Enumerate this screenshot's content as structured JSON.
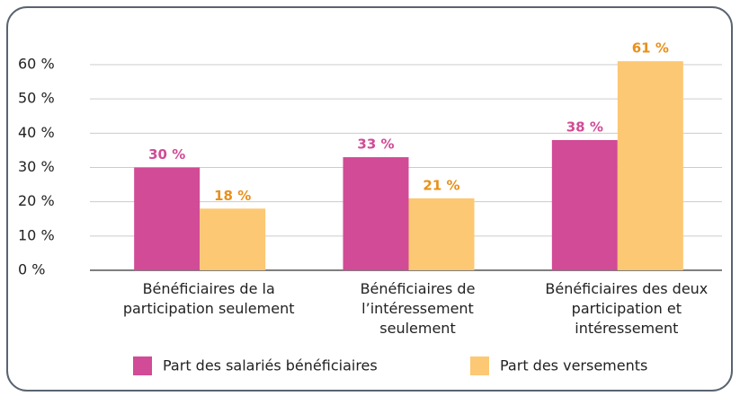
{
  "chart_data": {
    "type": "bar",
    "categories": [
      "Bénéficiaires de la\nparticipation seulement",
      "Bénéficiaires de\nl’intéressement\nseulement",
      "Bénéficiaires des deux\nparticipation et\nintéressement"
    ],
    "series": [
      {
        "name": "Part des salariés bénéficiaires",
        "color": "#d14b96",
        "label_color": "#d14b96",
        "values": [
          30,
          33,
          38
        ],
        "value_labels": [
          "30 %",
          "33 %",
          "38 %"
        ]
      },
      {
        "name": "Part des versements",
        "color": "#fcc873",
        "label_color": "#e8901a",
        "values": [
          18,
          21,
          61
        ],
        "value_labels": [
          "18 %",
          "21 %",
          "61 %"
        ]
      }
    ],
    "ylim": [
      0,
      60
    ],
    "yticks": [
      {
        "value": 0,
        "label": "0 %"
      },
      {
        "value": 10,
        "label": "10 %"
      },
      {
        "value": 20,
        "label": "20 %"
      },
      {
        "value": 30,
        "label": "30 %"
      },
      {
        "value": 40,
        "label": "40 %"
      },
      {
        "value": 50,
        "label": "50 %"
      },
      {
        "value": 60,
        "label": "60 %"
      }
    ],
    "grid": true
  }
}
